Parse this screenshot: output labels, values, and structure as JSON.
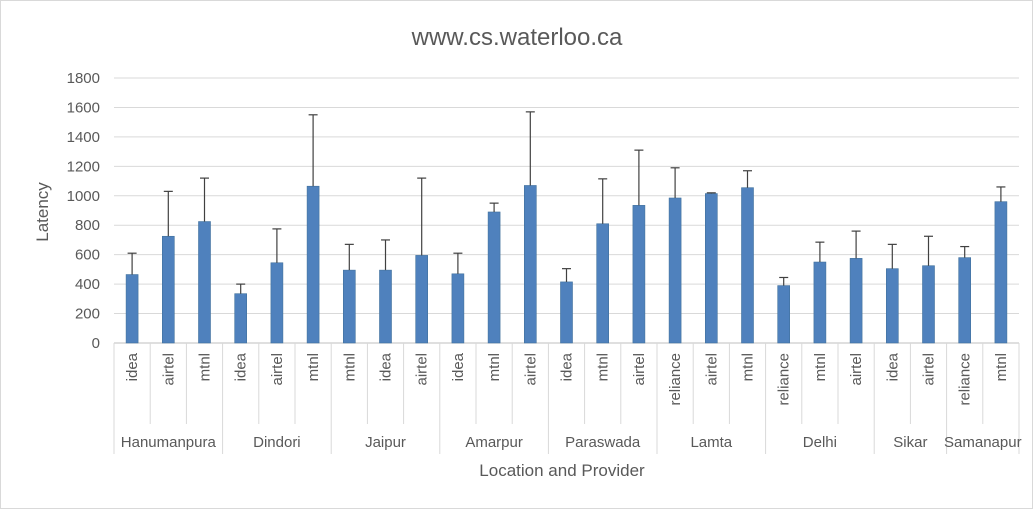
{
  "chart_data": {
    "type": "bar",
    "title": "www.cs.waterloo.ca",
    "xlabel": "Location and Provider",
    "ylabel": "Latency",
    "ylim": [
      0,
      1800
    ],
    "yticks": [
      0,
      200,
      400,
      600,
      800,
      1000,
      1200,
      1400,
      1600,
      1800
    ],
    "grid": true,
    "legend": "none",
    "bar_color": "#4f81bd",
    "groups": [
      {
        "location": "Hanumanpura",
        "bars": [
          {
            "provider": "idea",
            "value": 465,
            "err_upper": 610
          },
          {
            "provider": "airtel",
            "value": 725,
            "err_upper": 1030
          },
          {
            "provider": "mtnl",
            "value": 825,
            "err_upper": 1120
          }
        ]
      },
      {
        "location": "Dindori",
        "bars": [
          {
            "provider": "idea",
            "value": 335,
            "err_upper": 400
          },
          {
            "provider": "airtel",
            "value": 545,
            "err_upper": 775
          },
          {
            "provider": "mtnl",
            "value": 1065,
            "err_upper": 1550
          }
        ]
      },
      {
        "location": "Jaipur",
        "bars": [
          {
            "provider": "mtnl",
            "value": 495,
            "err_upper": 670
          },
          {
            "provider": "idea",
            "value": 495,
            "err_upper": 700
          },
          {
            "provider": "airtel",
            "value": 595,
            "err_upper": 1120
          }
        ]
      },
      {
        "location": "Amarpur",
        "bars": [
          {
            "provider": "idea",
            "value": 470,
            "err_upper": 610
          },
          {
            "provider": "mtnl",
            "value": 890,
            "err_upper": 950
          },
          {
            "provider": "airtel",
            "value": 1070,
            "err_upper": 1570
          }
        ]
      },
      {
        "location": "Paraswada",
        "bars": [
          {
            "provider": "idea",
            "value": 415,
            "err_upper": 505
          },
          {
            "provider": "mtnl",
            "value": 810,
            "err_upper": 1115
          },
          {
            "provider": "airtel",
            "value": 935,
            "err_upper": 1310
          }
        ]
      },
      {
        "location": "Lamta",
        "bars": [
          {
            "provider": "reliance",
            "value": 985,
            "err_upper": 1190
          },
          {
            "provider": "airtel",
            "value": 1015,
            "err_upper": 1020
          },
          {
            "provider": "mtnl",
            "value": 1055,
            "err_upper": 1170
          }
        ]
      },
      {
        "location": "Delhi",
        "bars": [
          {
            "provider": "reliance",
            "value": 390,
            "err_upper": 445
          },
          {
            "provider": "mtnl",
            "value": 550,
            "err_upper": 685
          },
          {
            "provider": "airtel",
            "value": 575,
            "err_upper": 760
          }
        ]
      },
      {
        "location": "Sikar",
        "bars": [
          {
            "provider": "idea",
            "value": 505,
            "err_upper": 670
          },
          {
            "provider": "airtel",
            "value": 525,
            "err_upper": 725
          }
        ]
      },
      {
        "location": "Samanapur",
        "bars": [
          {
            "provider": "reliance",
            "value": 580,
            "err_upper": 655
          },
          {
            "provider": "mtnl",
            "value": 960,
            "err_upper": 1060
          }
        ]
      }
    ]
  }
}
